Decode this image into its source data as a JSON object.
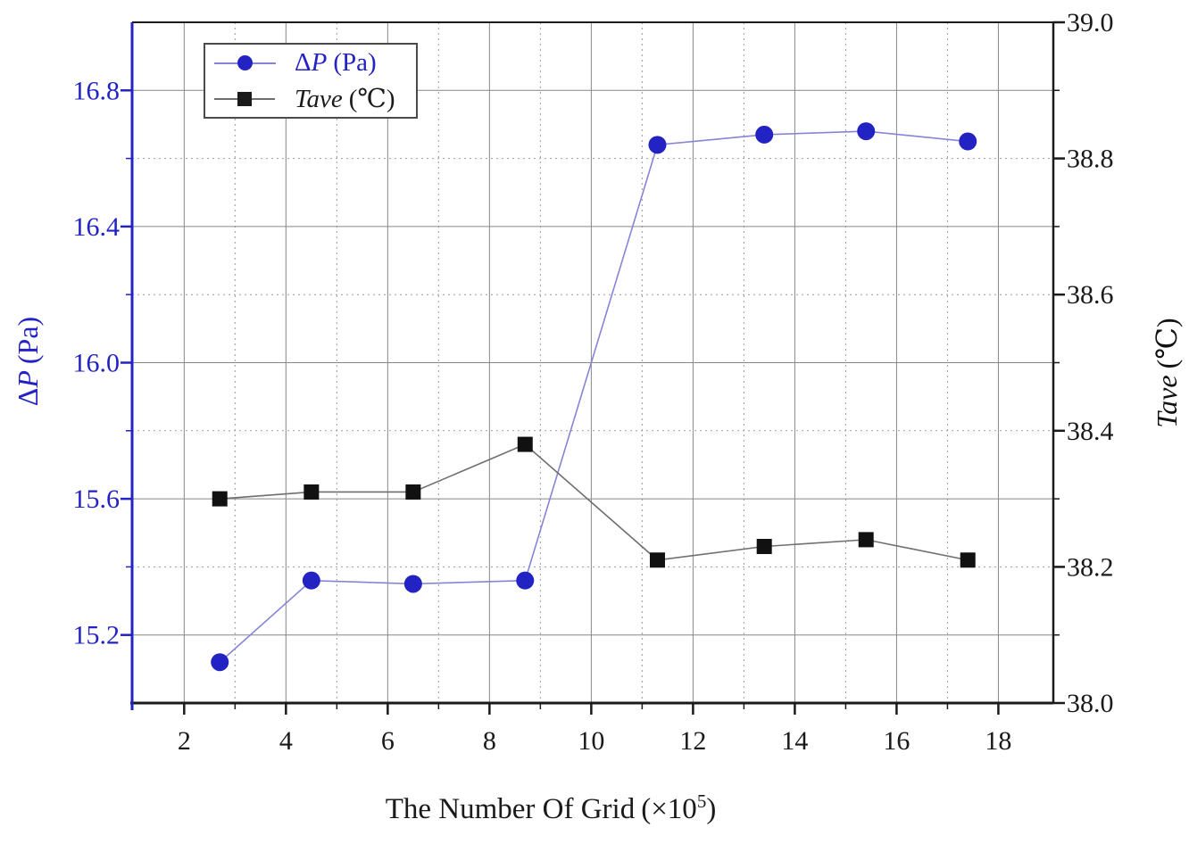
{
  "chart_data": {
    "type": "line",
    "title": "",
    "xlabel": "The Number Of Grid (×10^5)",
    "x": [
      2.7,
      4.5,
      6.5,
      8.7,
      11.3,
      13.4,
      15.4,
      17.4
    ],
    "series": [
      {
        "name": "ΔP (Pa)",
        "axis": "left",
        "marker": "circle",
        "marker_color": "#2323c3",
        "line_color": "#8585d8",
        "values": [
          15.12,
          15.36,
          15.35,
          15.36,
          16.64,
          16.67,
          16.68,
          16.65
        ]
      },
      {
        "name": "Tave (℃)",
        "axis": "right",
        "marker": "square",
        "marker_color": "#111111",
        "line_color": "#6e6e6e",
        "values": [
          38.3,
          38.31,
          38.31,
          38.38,
          38.21,
          38.23,
          38.24,
          38.21
        ]
      }
    ],
    "x_axis": {
      "range": [
        0.977,
        19.08
      ],
      "major_ticks": [
        2,
        4,
        6,
        8,
        10,
        12,
        14,
        16,
        18
      ],
      "tick_labels": [
        "2",
        "4",
        "6",
        "8",
        "10",
        "12",
        "14",
        "16",
        "18"
      ],
      "minor_ticks": [
        3,
        5,
        7,
        9,
        11,
        13,
        15,
        17
      ]
    },
    "left_axis": {
      "label": "ΔP (Pa)",
      "color": "#2323c3",
      "range": [
        15.0,
        17.0
      ],
      "major_ticks": [
        15.2,
        15.6,
        16.0,
        16.4,
        16.8
      ],
      "tick_labels": [
        "15.2",
        "15.6",
        "16.0",
        "16.4",
        "16.8"
      ],
      "minor_ticks": [
        15.4,
        15.8,
        16.2,
        16.6
      ]
    },
    "right_axis": {
      "label": "Tave (℃)",
      "color": "#111111",
      "range": [
        38.0,
        39.0
      ],
      "major_ticks": [
        38.0,
        38.2,
        38.4,
        38.6,
        38.8,
        39.0
      ],
      "tick_labels": [
        "38.0",
        "38.2",
        "38.4",
        "38.6",
        "38.8",
        "39.0"
      ],
      "minor_ticks": [
        38.1,
        38.3,
        38.5,
        38.7,
        38.9
      ]
    },
    "grid": {
      "major": "solid",
      "minor": "dotted",
      "major_color": "#878787",
      "minor_color": "#9b9b9b"
    },
    "legend_position": "upper-left"
  },
  "titles": {
    "left": {
      "pre": "Δ",
      "it": "P",
      "unit": "(Pa)"
    },
    "right": {
      "pre": "",
      "it": "Tave",
      "unit": "(℃)"
    },
    "x": {
      "text": "The Number Of Grid",
      "open": "(×10",
      "exp": "5",
      "close": ")"
    }
  },
  "legend": {
    "entries": [
      {
        "pre": "Δ",
        "it": "P",
        "unit": "(Pa)",
        "color": "#2323c3",
        "line": "#8585d8",
        "marker": "circle"
      },
      {
        "pre": "",
        "it": "Tave",
        "unit": "(℃)",
        "color": "#1a1a1a",
        "line": "#6e6e6e",
        "marker": "square"
      }
    ]
  }
}
